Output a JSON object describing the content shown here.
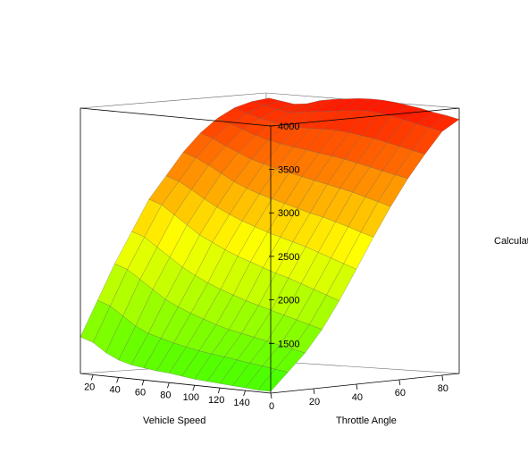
{
  "chart_data": {
    "type": "surface",
    "x_axis": {
      "label": "Vehicle Speed",
      "ticks": [
        20,
        40,
        60,
        80,
        100,
        120,
        140
      ],
      "range": [
        10,
        160
      ]
    },
    "y_axis": {
      "label": "Throttle Angle",
      "ticks": [
        0,
        20,
        40,
        60,
        80
      ],
      "range": [
        0,
        88
      ]
    },
    "z_axis": {
      "label": "Calculat",
      "ticks": [
        1500,
        2000,
        2500,
        3000,
        3500,
        4000
      ],
      "range": [
        1380,
        4450
      ]
    },
    "color_scale": {
      "low": "#44ff00",
      "mid": "#ffff00",
      "high": "#ff1a00"
    },
    "grid_x": [
      10,
      20,
      30,
      40,
      50,
      60,
      70,
      80,
      90,
      100,
      110,
      120,
      130,
      140,
      150,
      160
    ],
    "grid_y": [
      0,
      8,
      16,
      24,
      32,
      40,
      48,
      56,
      64,
      72,
      80,
      88
    ],
    "z": [
      [
        1800,
        2200,
        2600,
        2950,
        3300,
        3550,
        3800,
        4000,
        4150,
        4250,
        4300,
        4320
      ],
      [
        1750,
        2150,
        2550,
        2900,
        3250,
        3500,
        3750,
        3950,
        4100,
        4200,
        4270,
        4300
      ],
      [
        1650,
        2050,
        2450,
        2800,
        3150,
        3420,
        3680,
        3880,
        4050,
        4160,
        4240,
        4280
      ],
      [
        1580,
        1950,
        2350,
        2700,
        3050,
        3330,
        3600,
        3820,
        4000,
        4130,
        4220,
        4300
      ],
      [
        1540,
        1880,
        2250,
        2600,
        2950,
        3250,
        3520,
        3760,
        3960,
        4100,
        4240,
        4350
      ],
      [
        1520,
        1840,
        2180,
        2520,
        2880,
        3180,
        3460,
        3720,
        3930,
        4100,
        4260,
        4380
      ],
      [
        1500,
        1800,
        2120,
        2450,
        2810,
        3120,
        3410,
        3680,
        3910,
        4100,
        4280,
        4400
      ],
      [
        1490,
        1770,
        2070,
        2390,
        2750,
        3070,
        3370,
        3650,
        3890,
        4110,
        4300,
        4420
      ],
      [
        1470,
        1740,
        2020,
        2340,
        2700,
        3020,
        3330,
        3620,
        3870,
        4110,
        4320,
        4430
      ],
      [
        1450,
        1720,
        1980,
        2290,
        2650,
        2980,
        3290,
        3590,
        3850,
        4100,
        4330,
        4430
      ],
      [
        1440,
        1700,
        1950,
        2250,
        2600,
        2940,
        3250,
        3560,
        3830,
        4080,
        4320,
        4420
      ],
      [
        1430,
        1680,
        1920,
        2210,
        2560,
        2900,
        3220,
        3530,
        3800,
        4060,
        4300,
        4400
      ],
      [
        1420,
        1660,
        1890,
        2170,
        2510,
        2850,
        3180,
        3500,
        3770,
        4030,
        4270,
        4380
      ],
      [
        1410,
        1640,
        1860,
        2130,
        2460,
        2800,
        3140,
        3460,
        3740,
        4000,
        4240,
        4350
      ],
      [
        1400,
        1620,
        1830,
        2090,
        2410,
        2750,
        3090,
        3420,
        3710,
        3970,
        4210,
        4330
      ],
      [
        1400,
        1600,
        1800,
        2050,
        2360,
        2700,
        3050,
        3380,
        3680,
        3940,
        4180,
        4300
      ]
    ]
  }
}
